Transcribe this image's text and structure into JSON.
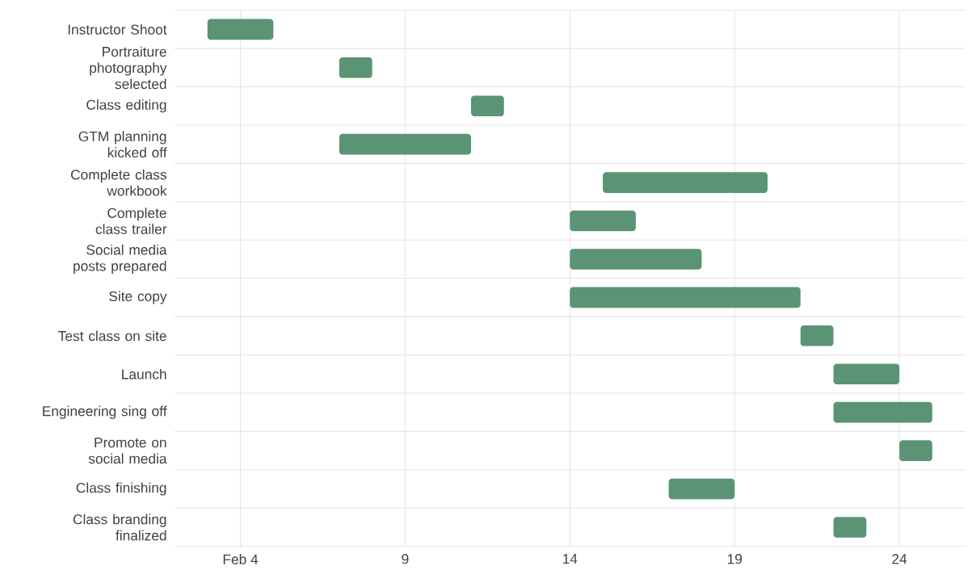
{
  "chart_data": {
    "type": "bar",
    "orientation": "horizontal",
    "categories": [
      "Instructor Shoot",
      "Portraiture photography selected",
      "Class editing",
      "GTM planning kicked off",
      "Complete class workbook",
      "Complete class trailer",
      "Social media posts prepared",
      "Site copy",
      "Test class on site",
      "Launch",
      "Engineering sing off",
      "Promote on social media",
      "Class finishing",
      "Class branding finalized"
    ],
    "base": [
      3,
      7,
      11,
      7,
      15,
      14,
      14,
      14,
      21,
      22,
      22,
      24,
      17,
      22
    ],
    "values": [
      2,
      1,
      1,
      4,
      5,
      2,
      4,
      7,
      1,
      2,
      3,
      1,
      2,
      1
    ],
    "color": "#5a9474",
    "xlim": [
      2,
      26
    ],
    "xticks": [
      {
        "value": 4,
        "label": "Feb 4"
      },
      9,
      14,
      19,
      24
    ],
    "grid": true
  }
}
